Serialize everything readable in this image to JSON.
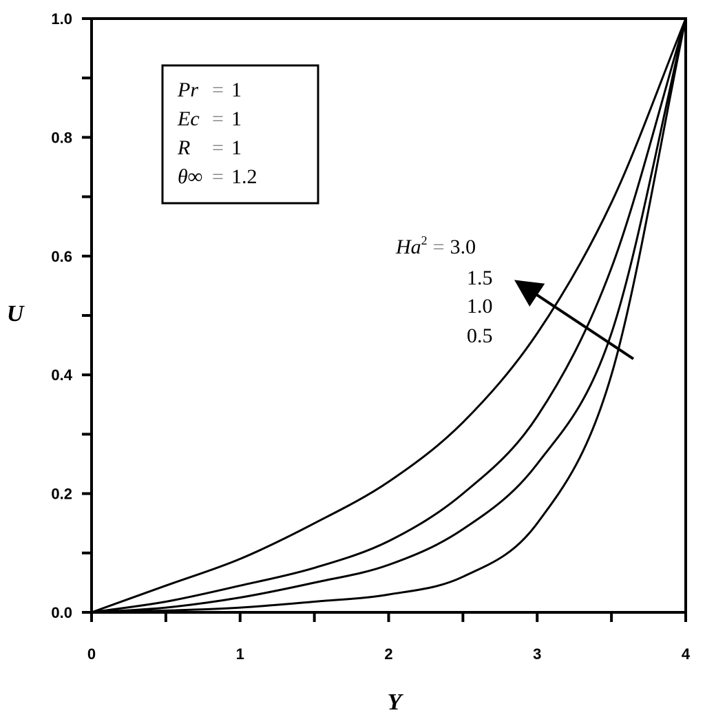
{
  "chart_data": {
    "type": "line",
    "xlabel": "Y",
    "ylabel": "U",
    "xlim": [
      0,
      4
    ],
    "ylim": [
      0,
      1.0
    ],
    "x_ticks": [
      0,
      1,
      2,
      3,
      4
    ],
    "x_tick_labels": [
      "0",
      "1",
      "2",
      "3",
      "4"
    ],
    "y_ticks": [
      0,
      0.2,
      0.4,
      0.6,
      0.8,
      1.0
    ],
    "y_tick_labels": [
      "0.0",
      "0.2",
      "0.4",
      "0.6",
      "0.8",
      "1.0"
    ],
    "x_minor_ticks": [
      0.5,
      1.5,
      2.5,
      3.5
    ],
    "y_minor_ticks": [
      0.1,
      0.3,
      0.5,
      0.7,
      0.9
    ],
    "grid": false,
    "legend": "none",
    "parameters": [
      {
        "name": "Pr",
        "eq": "=",
        "value": "1"
      },
      {
        "name": "Ec",
        "eq": "=",
        "value": "1"
      },
      {
        "name": "R",
        "eq": "=",
        "value": "1"
      },
      {
        "name": "θ∞",
        "eq": "=",
        "value": "1.2"
      }
    ],
    "series_label_prefix": "Ha",
    "series_label_sup": "2",
    "series_label_eq": "=",
    "series": [
      {
        "name": "3.0",
        "x": [
          0,
          0.5,
          1.0,
          1.5,
          2.0,
          2.5,
          3.0,
          3.5,
          4.0
        ],
        "y": [
          0,
          0.045,
          0.09,
          0.15,
          0.22,
          0.32,
          0.47,
          0.69,
          1.0
        ]
      },
      {
        "name": "1.5",
        "x": [
          0,
          0.5,
          1.0,
          1.5,
          2.0,
          2.5,
          3.0,
          3.5,
          4.0
        ],
        "y": [
          0,
          0.018,
          0.045,
          0.075,
          0.12,
          0.2,
          0.33,
          0.58,
          1.0
        ]
      },
      {
        "name": "1.0",
        "x": [
          0,
          0.5,
          1.0,
          1.5,
          2.0,
          2.5,
          3.0,
          3.5,
          4.0
        ],
        "y": [
          0,
          0.008,
          0.025,
          0.05,
          0.08,
          0.14,
          0.25,
          0.47,
          1.0
        ]
      },
      {
        "name": "0.5",
        "x": [
          0,
          0.5,
          1.0,
          1.5,
          2.0,
          2.5,
          3.0,
          3.5,
          4.0
        ],
        "y": [
          0,
          0.003,
          0.008,
          0.018,
          0.03,
          0.06,
          0.15,
          0.4,
          1.0
        ]
      }
    ],
    "annotation_arrow": "increasing Ha² direction, pointing up-left"
  }
}
